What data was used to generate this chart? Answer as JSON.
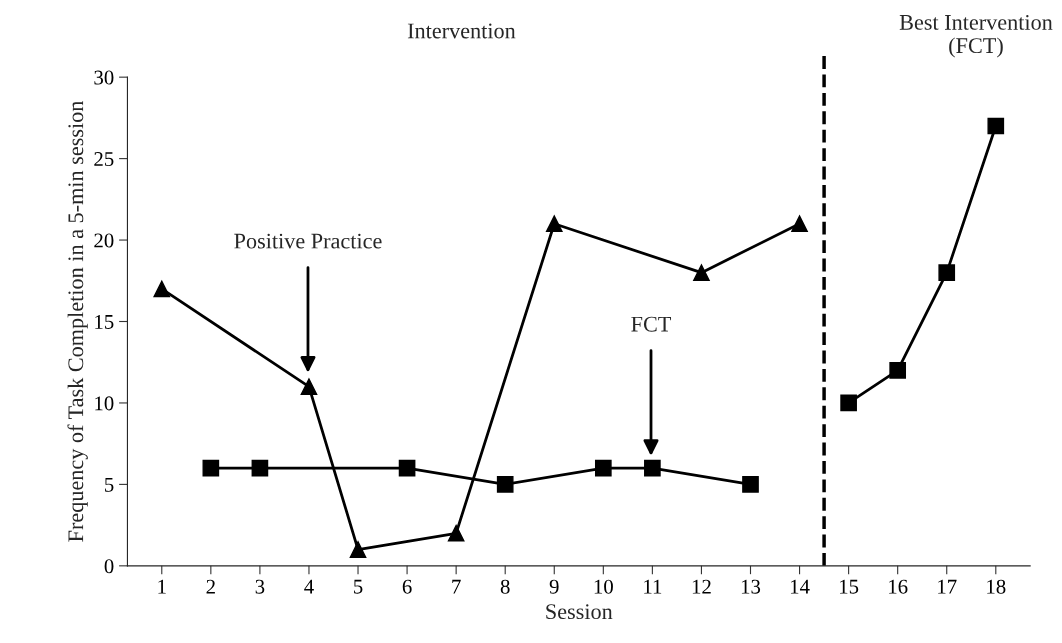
{
  "chart_data": {
    "type": "line",
    "xlabel": "Session",
    "ylabel": "Frequency of Task Completion in a 5-min session",
    "series": [
      {
        "color": "#000000",
        "marker": "triangle",
        "x": [
          1,
          4,
          5,
          7,
          9,
          12,
          14
        ],
        "values": [
          17,
          11,
          1,
          2,
          21,
          18,
          21
        ]
      },
      {
        "color": "#000000",
        "marker": "square",
        "x": [
          2,
          3,
          6,
          8,
          10,
          11,
          13,
          14,
          15,
          16,
          17,
          18
        ],
        "values": [
          6,
          6,
          6,
          5,
          6,
          6,
          5,
          null,
          10,
          12,
          18,
          27
        ]
      }
    ],
    "xlim": [
      0.3,
      18.7
    ],
    "xticks": [
      1,
      2,
      3,
      4,
      5,
      6,
      7,
      8,
      9,
      10,
      11,
      12,
      13,
      14,
      15,
      16,
      17,
      18
    ],
    "ylim": [
      0,
      30
    ],
    "yticks": [
      0,
      5,
      10,
      15,
      20,
      25,
      30
    ],
    "ref_lines": [
      {
        "axis": "x",
        "value": 14.5,
        "color": "#000000",
        "line_style": "dashed"
      }
    ],
    "annotations": [
      "Intervention",
      "Best Intervention\n(FCT)",
      "Positive Practice",
      "FCT"
    ],
    "grid": false,
    "legend": false,
    "line_style": "solid"
  }
}
